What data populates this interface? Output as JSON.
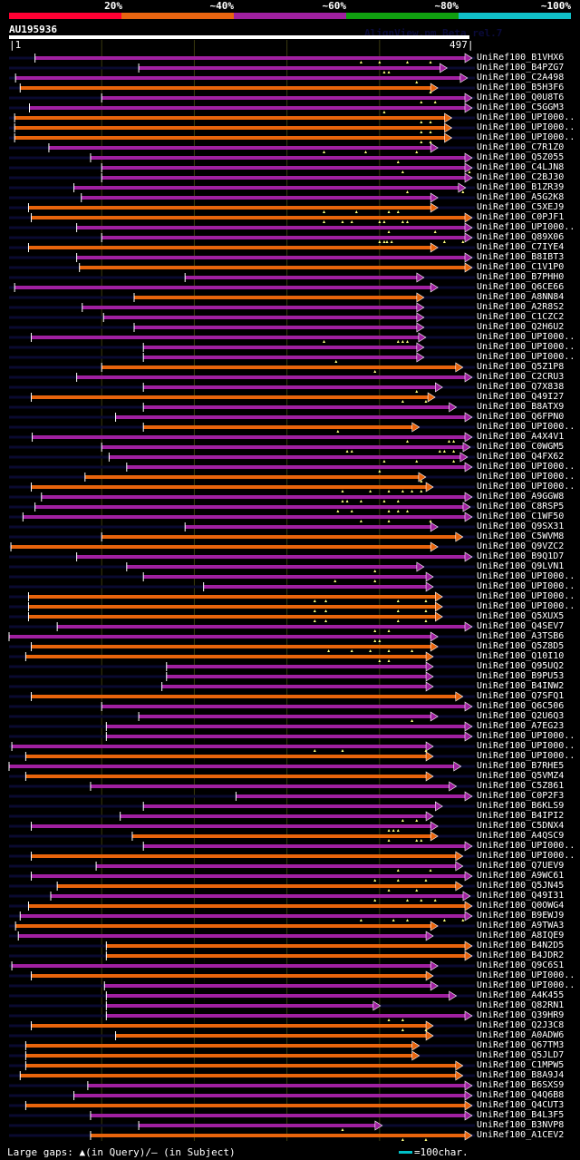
{
  "legend": {
    "labels": [
      "20%",
      "~40%",
      "~60%",
      "~80%",
      "~100%"
    ],
    "colors": [
      "#ff0033",
      "#e86410",
      "#a020a0",
      "#10a010",
      "#10c0c8"
    ]
  },
  "query": {
    "name": "AU195936",
    "start": "|1",
    "end": "497|",
    "length": 497
  },
  "watermark": "AlignView.pm Beta rel.7",
  "colors": {
    "orange": "#e8640c",
    "purple": "#a020a0",
    "background_line": "#0a0a30",
    "gap_marker": "#ffff80",
    "grid": "#3a3a10"
  },
  "hits": [
    {
      "label": "UniRef100_B1VHX6",
      "color": "purple",
      "start": 28,
      "end": 497,
      "gaps": [
        380,
        400,
        430,
        455
      ]
    },
    {
      "label": "UniRef100_B4PZG7",
      "color": "purple",
      "start": 140,
      "end": 470,
      "gaps": [
        405,
        410
      ]
    },
    {
      "label": "UniRef100_C2A498",
      "color": "purple",
      "start": 7,
      "end": 492,
      "gaps": [
        440
      ]
    },
    {
      "label": "UniRef100_B5H3F6",
      "color": "orange",
      "start": 12,
      "end": 460,
      "gaps": [
        455
      ]
    },
    {
      "label": "UniRef100_Q0U8T6",
      "color": "purple",
      "start": 100,
      "end": 497,
      "gaps": [
        445,
        460
      ]
    },
    {
      "label": "UniRef100_C5GGM3",
      "color": "purple",
      "start": 22,
      "end": 497,
      "gaps": [
        405
      ]
    },
    {
      "label": "UniRef100_UPI000..",
      "color": "orange",
      "start": 6,
      "end": 475,
      "gaps": [
        445,
        455
      ]
    },
    {
      "label": "UniRef100_UPI000..",
      "color": "orange",
      "start": 6,
      "end": 475,
      "gaps": [
        445,
        455
      ]
    },
    {
      "label": "UniRef100_UPI000..",
      "color": "orange",
      "start": 6,
      "end": 475,
      "gaps": [
        445,
        455
      ]
    },
    {
      "label": "UniRef100_C7R1Z0",
      "color": "purple",
      "start": 43,
      "end": 460,
      "gaps": [
        340,
        385,
        440
      ]
    },
    {
      "label": "UniRef100_Q5Z055",
      "color": "purple",
      "start": 88,
      "end": 497,
      "gaps": [
        420
      ]
    },
    {
      "label": "UniRef100_C4LJN8",
      "color": "purple",
      "start": 100,
      "end": 497,
      "gaps": [
        425,
        497
      ]
    },
    {
      "label": "UniRef100_C2BJ30",
      "color": "purple",
      "start": 100,
      "end": 497,
      "gaps": []
    },
    {
      "label": "UniRef100_B1ZR39",
      "color": "purple",
      "start": 70,
      "end": 490,
      "gaps": [
        430,
        490
      ]
    },
    {
      "label": "UniRef100_A5G2K8",
      "color": "purple",
      "start": 78,
      "end": 460,
      "gaps": []
    },
    {
      "label": "UniRef100_C5XEJ9",
      "color": "orange",
      "start": 21,
      "end": 460,
      "gaps": [
        340,
        375,
        410,
        420
      ]
    },
    {
      "label": "UniRef100_C0PJF1",
      "color": "orange",
      "start": 24,
      "end": 497,
      "gaps": [
        340,
        360,
        370,
        400,
        405,
        425,
        430
      ]
    },
    {
      "label": "UniRef100_UPI000..",
      "color": "purple",
      "start": 73,
      "end": 497,
      "gaps": [
        410,
        460
      ]
    },
    {
      "label": "UniRef100_Q89X06",
      "color": "purple",
      "start": 100,
      "end": 497,
      "gaps": [
        400,
        405,
        408,
        413,
        470,
        490
      ]
    },
    {
      "label": "UniRef100_C7IYE4",
      "color": "orange",
      "start": 21,
      "end": 460,
      "gaps": []
    },
    {
      "label": "UniRef100_B8IBT3",
      "color": "purple",
      "start": 73,
      "end": 497,
      "gaps": []
    },
    {
      "label": "UniRef100_C1V1P0",
      "color": "orange",
      "start": 76,
      "end": 497,
      "gaps": []
    },
    {
      "label": "UniRef100_B7PHH0",
      "color": "purple",
      "start": 190,
      "end": 445,
      "gaps": []
    },
    {
      "label": "UniRef100_Q6CE66",
      "color": "purple",
      "start": 6,
      "end": 460,
      "gaps": []
    },
    {
      "label": "UniRef100_A8NN84",
      "color": "orange",
      "start": 135,
      "end": 445,
      "gaps": []
    },
    {
      "label": "UniRef100_A2R8S2",
      "color": "purple",
      "start": 79,
      "end": 445,
      "gaps": []
    },
    {
      "label": "UniRef100_C1CZC2",
      "color": "purple",
      "start": 102,
      "end": 445,
      "gaps": []
    },
    {
      "label": "UniRef100_Q2H6U2",
      "color": "purple",
      "start": 135,
      "end": 445,
      "gaps": []
    },
    {
      "label": "UniRef100_UPI000..",
      "color": "purple",
      "start": 24,
      "end": 447,
      "gaps": [
        340,
        420,
        425,
        430
      ]
    },
    {
      "label": "UniRef100_UPI000..",
      "color": "purple",
      "start": 145,
      "end": 445,
      "gaps": []
    },
    {
      "label": "UniRef100_UPI000..",
      "color": "purple",
      "start": 145,
      "end": 445,
      "gaps": [
        353
      ]
    },
    {
      "label": "UniRef100_Q5Z1P8",
      "color": "orange",
      "start": 100,
      "end": 487,
      "gaps": [
        395
      ]
    },
    {
      "label": "UniRef100_C2CRU3",
      "color": "purple",
      "start": 73,
      "end": 497,
      "gaps": []
    },
    {
      "label": "UniRef100_Q7X838",
      "color": "purple",
      "start": 145,
      "end": 465,
      "gaps": [
        440
      ]
    },
    {
      "label": "UniRef100_Q49I27",
      "color": "orange",
      "start": 24,
      "end": 457,
      "gaps": [
        425,
        450
      ]
    },
    {
      "label": "UniRef100_B8ATX9",
      "color": "purple",
      "start": 145,
      "end": 480,
      "gaps": []
    },
    {
      "label": "UniRef100_Q6FPN0",
      "color": "purple",
      "start": 115,
      "end": 497,
      "gaps": []
    },
    {
      "label": "UniRef100_UPI000..",
      "color": "orange",
      "start": 145,
      "end": 440,
      "gaps": [
        355
      ]
    },
    {
      "label": "UniRef100_A4X4V1",
      "color": "purple",
      "start": 25,
      "end": 497,
      "gaps": [
        430,
        475,
        480
      ]
    },
    {
      "label": "UniRef100_C0WGM5",
      "color": "purple",
      "start": 100,
      "end": 495,
      "gaps": [
        365,
        370,
        465,
        470,
        480
      ]
    },
    {
      "label": "UniRef100_Q4FX62",
      "color": "purple",
      "start": 108,
      "end": 492,
      "gaps": [
        405,
        440,
        480
      ]
    },
    {
      "label": "UniRef100_UPI000..",
      "color": "purple",
      "start": 127,
      "end": 497,
      "gaps": [
        400
      ]
    },
    {
      "label": "UniRef100_UPI000..",
      "color": "orange",
      "start": 82,
      "end": 447,
      "gaps": [
        445
      ]
    },
    {
      "label": "UniRef100_UPI000..",
      "color": "orange",
      "start": 24,
      "end": 455,
      "gaps": [
        360,
        390,
        410,
        425,
        435,
        445
      ]
    },
    {
      "label": "UniRef100_A9GGW8",
      "color": "purple",
      "start": 35,
      "end": 497,
      "gaps": [
        360,
        365,
        380,
        405,
        420
      ]
    },
    {
      "label": "UniRef100_C8RSP5",
      "color": "purple",
      "start": 28,
      "end": 495,
      "gaps": [
        355,
        370,
        410,
        420,
        430
      ]
    },
    {
      "label": "UniRef100_C1WF50",
      "color": "purple",
      "start": 15,
      "end": 497,
      "gaps": [
        380,
        410,
        455
      ]
    },
    {
      "label": "UniRef100_Q9SX31",
      "color": "purple",
      "start": 190,
      "end": 460,
      "gaps": []
    },
    {
      "label": "UniRef100_C5WVM8",
      "color": "orange",
      "start": 100,
      "end": 487,
      "gaps": []
    },
    {
      "label": "UniRef100_Q9VZC2",
      "color": "orange",
      "start": 2,
      "end": 460,
      "gaps": []
    },
    {
      "label": "UniRef100_B9Q1D7",
      "color": "purple",
      "start": 73,
      "end": 497,
      "gaps": []
    },
    {
      "label": "UniRef100_Q9LVN1",
      "color": "purple",
      "start": 127,
      "end": 445,
      "gaps": [
        395
      ]
    },
    {
      "label": "UniRef100_UPI000..",
      "color": "purple",
      "start": 145,
      "end": 455,
      "gaps": [
        352,
        395
      ]
    },
    {
      "label": "UniRef100_UPI000..",
      "color": "purple",
      "start": 210,
      "end": 455,
      "gaps": []
    },
    {
      "label": "UniRef100_UPI000..",
      "color": "orange",
      "start": 21,
      "end": 465,
      "gaps": [
        330,
        342,
        420,
        450
      ]
    },
    {
      "label": "UniRef100_UPI000..",
      "color": "orange",
      "start": 21,
      "end": 465,
      "gaps": [
        330,
        342,
        420,
        450
      ]
    },
    {
      "label": "UniRef100_Q5XUX5",
      "color": "orange",
      "start": 21,
      "end": 465,
      "gaps": [
        330,
        342,
        420,
        450
      ]
    },
    {
      "label": "UniRef100_Q4SEV7",
      "color": "purple",
      "start": 52,
      "end": 497,
      "gaps": [
        395,
        410
      ]
    },
    {
      "label": "UniRef100_A3TSB6",
      "color": "purple",
      "start": 0,
      "end": 460,
      "gaps": [
        395,
        400
      ]
    },
    {
      "label": "UniRef100_Q5Z8D5",
      "color": "orange",
      "start": 24,
      "end": 460,
      "gaps": [
        345,
        370,
        390,
        410,
        435
      ]
    },
    {
      "label": "UniRef100_Q10I10",
      "color": "orange",
      "start": 18,
      "end": 455,
      "gaps": [
        400,
        410
      ]
    },
    {
      "label": "UniRef100_Q95UQ2",
      "color": "purple",
      "start": 170,
      "end": 455,
      "gaps": []
    },
    {
      "label": "UniRef100_B9PU53",
      "color": "purple",
      "start": 170,
      "end": 455,
      "gaps": []
    },
    {
      "label": "UniRef100_B4INW2",
      "color": "purple",
      "start": 165,
      "end": 455,
      "gaps": []
    },
    {
      "label": "UniRef100_Q7SFQ1",
      "color": "orange",
      "start": 24,
      "end": 487,
      "gaps": []
    },
    {
      "label": "UniRef100_Q6C506",
      "color": "purple",
      "start": 100,
      "end": 497,
      "gaps": []
    },
    {
      "label": "UniRef100_Q2U6Q3",
      "color": "purple",
      "start": 140,
      "end": 460,
      "gaps": [
        435
      ]
    },
    {
      "label": "UniRef100_A7EG23",
      "color": "purple",
      "start": 105,
      "end": 497,
      "gaps": []
    },
    {
      "label": "UniRef100_UPI000..",
      "color": "purple",
      "start": 105,
      "end": 497,
      "gaps": []
    },
    {
      "label": "UniRef100_UPI000..",
      "color": "purple",
      "start": 3,
      "end": 455,
      "gaps": [
        330,
        360,
        450
      ]
    },
    {
      "label": "UniRef100_UPI000..",
      "color": "orange",
      "start": 18,
      "end": 455,
      "gaps": []
    },
    {
      "label": "UniRef100_B7RHE5",
      "color": "purple",
      "start": 0,
      "end": 485,
      "gaps": []
    },
    {
      "label": "UniRef100_Q5VMZ4",
      "color": "orange",
      "start": 18,
      "end": 455,
      "gaps": []
    },
    {
      "label": "UniRef100_C5Z861",
      "color": "purple",
      "start": 88,
      "end": 480,
      "gaps": []
    },
    {
      "label": "UniRef100_C0P2F3",
      "color": "purple",
      "start": 245,
      "end": 497,
      "gaps": []
    },
    {
      "label": "UniRef100_B6KLS9",
      "color": "purple",
      "start": 145,
      "end": 465,
      "gaps": []
    },
    {
      "label": "UniRef100_B4IPI2",
      "color": "purple",
      "start": 120,
      "end": 455,
      "gaps": [
        425,
        440
      ]
    },
    {
      "label": "UniRef100_C5DNX4",
      "color": "purple",
      "start": 24,
      "end": 460,
      "gaps": [
        410,
        415,
        420
      ]
    },
    {
      "label": "UniRef100_A4QSC9",
      "color": "orange",
      "start": 133,
      "end": 460,
      "gaps": [
        410,
        440,
        445
      ]
    },
    {
      "label": "UniRef100_UPI000..",
      "color": "purple",
      "start": 145,
      "end": 497,
      "gaps": []
    },
    {
      "label": "UniRef100_UPI000..",
      "color": "orange",
      "start": 24,
      "end": 487,
      "gaps": []
    },
    {
      "label": "UniRef100_Q7UEV9",
      "color": "purple",
      "start": 94,
      "end": 487,
      "gaps": [
        420,
        455
      ]
    },
    {
      "label": "UniRef100_A9WC61",
      "color": "purple",
      "start": 24,
      "end": 497,
      "gaps": [
        395,
        420,
        450
      ]
    },
    {
      "label": "UniRef100_Q5JN45",
      "color": "orange",
      "start": 52,
      "end": 487,
      "gaps": [
        410,
        440
      ]
    },
    {
      "label": "UniRef100_Q49I31",
      "color": "purple",
      "start": 45,
      "end": 495,
      "gaps": [
        395,
        430,
        445,
        460
      ]
    },
    {
      "label": "UniRef100_Q0OWG4",
      "color": "orange",
      "start": 21,
      "end": 497,
      "gaps": []
    },
    {
      "label": "UniRef100_B9EWJ9",
      "color": "purple",
      "start": 12,
      "end": 497,
      "gaps": [
        380,
        415,
        430,
        470,
        490
      ]
    },
    {
      "label": "UniRef100_A9TWA3",
      "color": "orange",
      "start": 7,
      "end": 460,
      "gaps": []
    },
    {
      "label": "UniRef100_A8IQE9",
      "color": "purple",
      "start": 10,
      "end": 455,
      "gaps": []
    },
    {
      "label": "UniRef100_B4N2D5",
      "color": "orange",
      "start": 105,
      "end": 497,
      "gaps": []
    },
    {
      "label": "UniRef100_B4JDR2",
      "color": "orange",
      "start": 105,
      "end": 497,
      "gaps": []
    },
    {
      "label": "UniRef100_Q9C6S1",
      "color": "purple",
      "start": 3,
      "end": 460,
      "gaps": []
    },
    {
      "label": "UniRef100_UPI000..",
      "color": "orange",
      "start": 24,
      "end": 455,
      "gaps": []
    },
    {
      "label": "UniRef100_UPI000..",
      "color": "purple",
      "start": 103,
      "end": 460,
      "gaps": []
    },
    {
      "label": "UniRef100_A4K455",
      "color": "purple",
      "start": 105,
      "end": 480,
      "gaps": []
    },
    {
      "label": "UniRef100_Q82RN1",
      "color": "purple",
      "start": 105,
      "end": 398,
      "gaps": []
    },
    {
      "label": "UniRef100_Q39HR9",
      "color": "purple",
      "start": 105,
      "end": 497,
      "gaps": [
        410,
        425
      ]
    },
    {
      "label": "UniRef100_Q2J3C8",
      "color": "orange",
      "start": 24,
      "end": 455,
      "gaps": [
        425,
        450
      ]
    },
    {
      "label": "UniRef100_A0ADW6",
      "color": "orange",
      "start": 115,
      "end": 455,
      "gaps": []
    },
    {
      "label": "UniRef100_Q67TM3",
      "color": "orange",
      "start": 18,
      "end": 440,
      "gaps": []
    },
    {
      "label": "UniRef100_Q5JLD7",
      "color": "orange",
      "start": 18,
      "end": 440,
      "gaps": []
    },
    {
      "label": "UniRef100_C1MPW5",
      "color": "orange",
      "start": 18,
      "end": 487,
      "gaps": []
    },
    {
      "label": "UniRef100_B8A9J4",
      "color": "orange",
      "start": 12,
      "end": 487,
      "gaps": []
    },
    {
      "label": "UniRef100_B6SXS9",
      "color": "purple",
      "start": 85,
      "end": 497,
      "gaps": []
    },
    {
      "label": "UniRef100_Q4Q6B8",
      "color": "purple",
      "start": 70,
      "end": 497,
      "gaps": []
    },
    {
      "label": "UniRef100_Q4CUT3",
      "color": "orange",
      "start": 18,
      "end": 497,
      "gaps": []
    },
    {
      "label": "UniRef100_B4L3F5",
      "color": "purple",
      "start": 88,
      "end": 497,
      "gaps": []
    },
    {
      "label": "UniRef100_B3NVP8",
      "color": "purple",
      "start": 140,
      "end": 400,
      "gaps": [
        360
      ]
    },
    {
      "label": "UniRef100_A1CEV2",
      "color": "orange",
      "start": 88,
      "end": 497,
      "gaps": [
        425,
        450
      ]
    }
  ],
  "footer": {
    "legend_text": "Large gaps: ▲(in Query)/– (in Subject)",
    "scale_text": "=100char."
  }
}
